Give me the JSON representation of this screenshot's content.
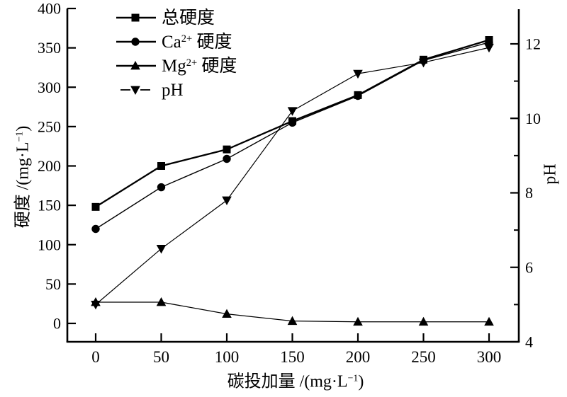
{
  "figure": {
    "background": "#ffffff",
    "ink_color": "#000000"
  },
  "chart_data": {
    "type": "line",
    "x": [
      0,
      50,
      100,
      150,
      200,
      250,
      300
    ],
    "x_axis": {
      "label": {
        "pre": "碳投加量 /(mg·L",
        "sup": "−1",
        "post": ")"
      },
      "ticks": [
        0,
        50,
        100,
        150,
        200,
        250,
        300
      ],
      "lim": [
        0,
        300
      ]
    },
    "left_axis": {
      "label": {
        "pre": "硬度 /(mg·L",
        "sup": "−1",
        "post": ")"
      },
      "ticks": [
        0,
        50,
        100,
        150,
        200,
        250,
        300,
        350,
        400
      ],
      "lim": [
        0,
        400
      ]
    },
    "right_axis": {
      "label": {
        "pre": "pH",
        "sup": "",
        "post": ""
      },
      "major_ticks": [
        4,
        6,
        8,
        10,
        12
      ],
      "minor_ticks": [
        5,
        7,
        9,
        11
      ],
      "lim": [
        4,
        12
      ]
    },
    "series": [
      {
        "id": "total-hardness",
        "name": "总硬度",
        "axis": "left",
        "marker": "square",
        "line_width": 2.3,
        "values": [
          148,
          200,
          221,
          257,
          290,
          335,
          360
        ]
      },
      {
        "id": "ca-hardness",
        "name": "Ca2+ 硬度",
        "axis": "left",
        "marker": "circle",
        "line_width": 1.4,
        "values": [
          120,
          173,
          209,
          255,
          289,
          334,
          357
        ]
      },
      {
        "id": "mg-hardness",
        "name": "Mg2+ 硬度",
        "axis": "left",
        "marker": "triangle-up",
        "line_width": 1.3,
        "values": [
          27,
          27,
          12,
          3,
          2,
          2,
          2
        ]
      },
      {
        "id": "ph",
        "name": "pH",
        "axis": "right",
        "marker": "triangle-down",
        "line_width": 1.2,
        "values": [
          5.0,
          6.5,
          7.8,
          10.2,
          11.2,
          11.5,
          11.9
        ]
      }
    ],
    "legend": [
      {
        "id": "total-hardness",
        "marker": "square",
        "dashed": false,
        "label": {
          "pre": "总硬度",
          "sup": "",
          "post": ""
        }
      },
      {
        "id": "ca-hardness",
        "marker": "circle",
        "dashed": false,
        "label": {
          "pre": "Ca",
          "sup": "2+",
          "post": " 硬度"
        }
      },
      {
        "id": "mg-hardness",
        "marker": "triangle-up",
        "dashed": false,
        "label": {
          "pre": "Mg",
          "sup": "2+",
          "post": " 硬度"
        }
      },
      {
        "id": "ph",
        "marker": "triangle-down",
        "dashed": true,
        "label": {
          "pre": "pH",
          "sup": "",
          "post": ""
        }
      }
    ],
    "legend_position": "upper-left-inside",
    "grid": false
  }
}
